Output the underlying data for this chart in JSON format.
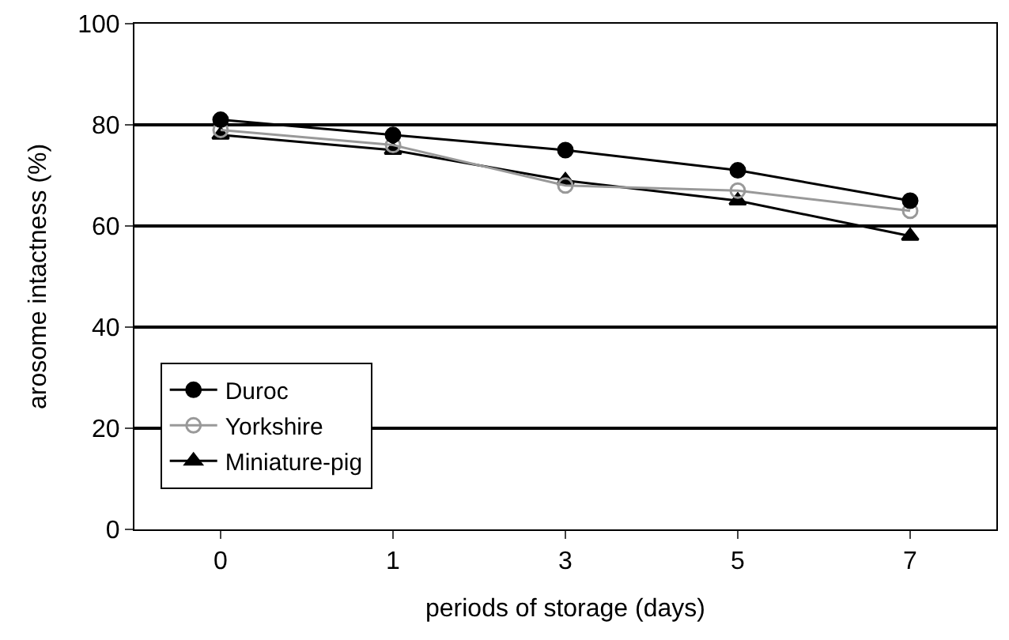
{
  "chart_data": {
    "type": "line",
    "xlabel": "periods of storage (days)",
    "ylabel": "arosome intactness (%)",
    "categories": [
      "0",
      "1",
      "3",
      "5",
      "7"
    ],
    "series": [
      {
        "name": "Duroc",
        "color": "#000000",
        "marker": "circle",
        "values": [
          81,
          78,
          75,
          71,
          65
        ]
      },
      {
        "name": "Yorkshire",
        "color": "#999999",
        "marker": "circle-open",
        "values": [
          79,
          76,
          68,
          67,
          63
        ]
      },
      {
        "name": "Miniature-pig",
        "color": "#000000",
        "marker": "triangle",
        "values": [
          78,
          75,
          69,
          65,
          58
        ]
      }
    ],
    "ylim": [
      0,
      100
    ],
    "yticks": [
      0,
      20,
      40,
      60,
      80,
      100
    ],
    "grid": "y",
    "legend": "bottom left"
  }
}
